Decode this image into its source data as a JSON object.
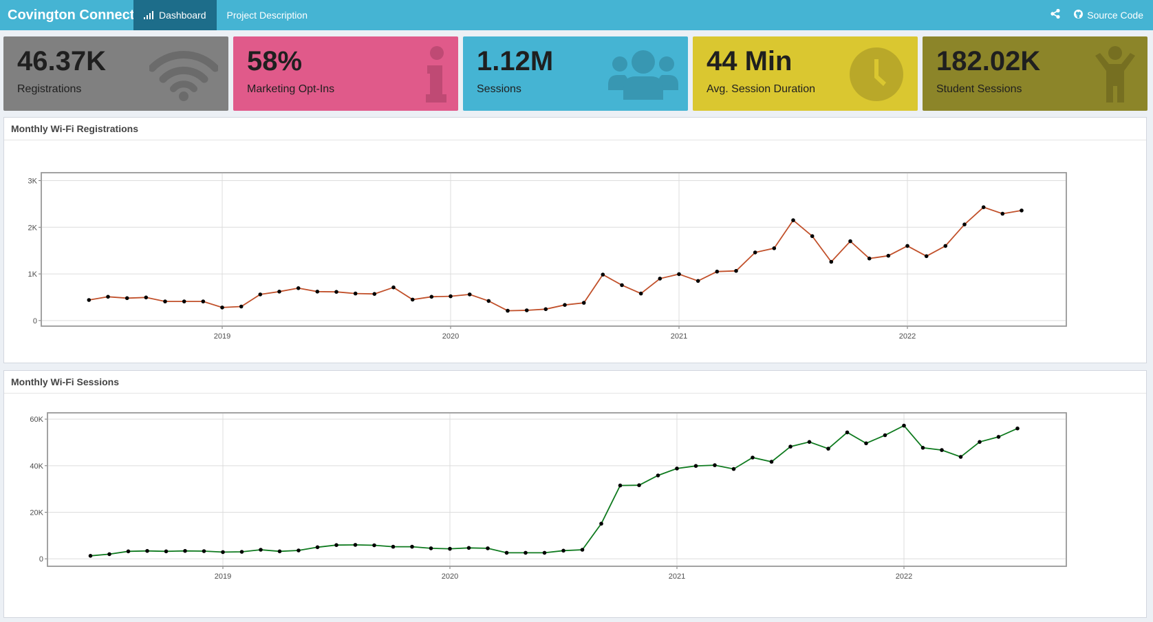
{
  "navbar": {
    "brand": "Covington Connect",
    "tabs": [
      {
        "label": "Dashboard",
        "active": true
      },
      {
        "label": "Project Description",
        "active": false
      }
    ],
    "source_code": "Source Code",
    "share_icon": "share-icon",
    "github_icon": "github-icon",
    "bar_color": "#45b4d3",
    "active_tab_color": "#1d6d8a"
  },
  "value_boxes": [
    {
      "value": "46.37K",
      "label": "Registrations",
      "icon": "wifi-icon",
      "color": "#808080",
      "icon_color": "#6b6b6b"
    },
    {
      "value": "58%",
      "label": "Marketing Opt-Ins",
      "icon": "info-icon",
      "color": "#e05a8a",
      "icon_color": "#bf4a74"
    },
    {
      "value": "1.12M",
      "label": "Sessions",
      "icon": "users-icon",
      "color": "#45b4d3",
      "icon_color": "#3897b2"
    },
    {
      "value": "44 Min",
      "label": "Avg. Session Duration",
      "icon": "clock-icon",
      "color": "#dac730",
      "icon_color": "#b9a829"
    },
    {
      "value": "182.02K",
      "label": "Student Sessions",
      "icon": "child-icon",
      "color": "#8c8529",
      "icon_color": "#766f21"
    }
  ],
  "chart_data": [
    {
      "type": "line",
      "title": "Monthly Wi-Fi Registrations",
      "color": "#c1502a",
      "x": [
        "2018-06",
        "2018-07",
        "2018-08",
        "2018-09",
        "2018-10",
        "2018-11",
        "2018-12",
        "2019-01",
        "2019-02",
        "2019-03",
        "2019-04",
        "2019-05",
        "2019-06",
        "2019-07",
        "2019-08",
        "2019-09",
        "2019-10",
        "2019-11",
        "2019-12",
        "2020-01",
        "2020-02",
        "2020-03",
        "2020-04",
        "2020-05",
        "2020-06",
        "2020-07",
        "2020-08",
        "2020-09",
        "2020-10",
        "2020-11",
        "2020-12",
        "2021-01",
        "2021-02",
        "2021-03",
        "2021-04",
        "2021-05",
        "2021-06",
        "2021-07",
        "2021-08",
        "2021-09",
        "2021-10",
        "2021-11",
        "2021-12",
        "2022-01",
        "2022-02",
        "2022-03",
        "2022-04",
        "2022-05",
        "2022-06",
        "2022-07"
      ],
      "values": [
        440,
        510,
        480,
        495,
        410,
        410,
        410,
        280,
        300,
        560,
        620,
        695,
        620,
        615,
        580,
        570,
        710,
        450,
        510,
        520,
        560,
        420,
        210,
        220,
        245,
        335,
        380,
        985,
        760,
        580,
        900,
        995,
        850,
        1050,
        1065,
        1460,
        1550,
        2150,
        1810,
        1260,
        1700,
        1330,
        1390,
        1600,
        1380,
        1600,
        2060,
        2430,
        2290,
        2360
      ],
      "y_ticks": [
        "0",
        "1K",
        "2K",
        "3K"
      ],
      "x_ticks": [
        "2019",
        "2020",
        "2021",
        "2022"
      ],
      "ylim": [
        -120,
        3170
      ]
    },
    {
      "type": "line",
      "title": "Monthly Wi-Fi Sessions",
      "color": "#0e7a1e",
      "x": [
        "2018-06",
        "2018-07",
        "2018-08",
        "2018-09",
        "2018-10",
        "2018-11",
        "2018-12",
        "2019-01",
        "2019-02",
        "2019-03",
        "2019-04",
        "2019-05",
        "2019-06",
        "2019-07",
        "2019-08",
        "2019-09",
        "2019-10",
        "2019-11",
        "2019-12",
        "2020-01",
        "2020-02",
        "2020-03",
        "2020-04",
        "2020-05",
        "2020-06",
        "2020-07",
        "2020-08",
        "2020-09",
        "2020-10",
        "2020-11",
        "2020-12",
        "2021-01",
        "2021-02",
        "2021-03",
        "2021-04",
        "2021-05",
        "2021-06",
        "2021-07",
        "2021-08",
        "2021-09",
        "2021-10",
        "2021-11",
        "2021-12",
        "2022-01",
        "2022-02",
        "2022-03",
        "2022-04",
        "2022-05",
        "2022-06",
        "2022-07"
      ],
      "values": [
        1300,
        2000,
        3200,
        3400,
        3200,
        3400,
        3300,
        2900,
        3000,
        3900,
        3200,
        3600,
        5000,
        5900,
        6000,
        5800,
        5200,
        5200,
        4500,
        4300,
        4700,
        4500,
        2600,
        2600,
        2600,
        3500,
        3900,
        15100,
        31500,
        31600,
        35800,
        38800,
        39900,
        40200,
        38600,
        43500,
        41700,
        48200,
        50200,
        47300,
        54300,
        49600,
        53100,
        57200,
        47700,
        46700,
        43800,
        50200,
        52400,
        56000
      ],
      "y_ticks": [
        "0",
        "20K",
        "40K",
        "60K"
      ],
      "x_ticks": [
        "2019",
        "2020",
        "2021",
        "2022"
      ],
      "ylim": [
        -3200,
        62700
      ]
    }
  ]
}
